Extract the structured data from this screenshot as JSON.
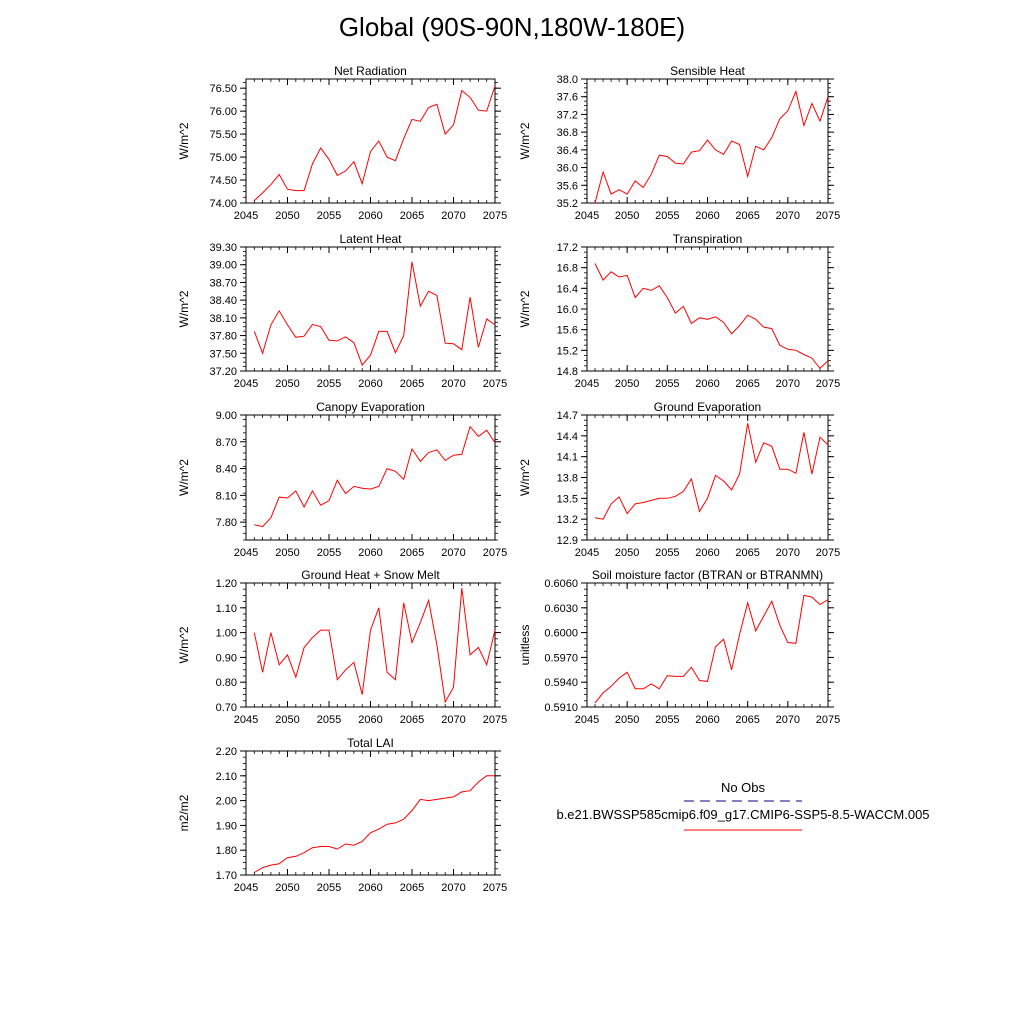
{
  "title": "Global (90S-90N,180W-180E)",
  "legend": {
    "obs_label": "No Obs",
    "model_label": "b.e21.BWSSP585cmip6.f09_g17.CMIP6-SSP5-8.5-WACCM.005",
    "obs_color": "#00008b",
    "model_color": "#ff0000"
  },
  "chart_data": [
    {
      "type": "line",
      "title": "Net Radiation",
      "ylabel": "W/m^2",
      "xlim": [
        2045,
        2075
      ],
      "ylim": [
        74.0,
        76.7
      ],
      "xticks": [
        2045,
        2050,
        2055,
        2060,
        2065,
        2070,
        2075
      ],
      "yticks": [
        "74.00",
        "74.50",
        "75.00",
        "75.50",
        "76.00",
        "76.50"
      ],
      "series": [
        {
          "color": "#ff0000",
          "x": [
            2046,
            2047,
            2048,
            2049,
            2050,
            2051,
            2052,
            2053,
            2054,
            2055,
            2056,
            2057,
            2058,
            2059,
            2060,
            2061,
            2062,
            2063,
            2064,
            2065,
            2066,
            2067,
            2068,
            2069,
            2070,
            2071,
            2072,
            2073,
            2074,
            2075
          ],
          "values": [
            74.05,
            74.22,
            74.4,
            74.62,
            74.3,
            74.27,
            74.27,
            74.85,
            75.2,
            74.95,
            74.6,
            74.7,
            74.9,
            74.42,
            75.12,
            75.35,
            75.0,
            74.92,
            75.4,
            75.82,
            75.78,
            76.08,
            76.15,
            75.5,
            75.7,
            76.45,
            76.3,
            76.02,
            76.0,
            76.55
          ]
        }
      ]
    },
    {
      "type": "line",
      "title": "Sensible Heat",
      "ylabel": "W/m^2",
      "xlim": [
        2045,
        2075
      ],
      "ylim": [
        35.2,
        38.0
      ],
      "xticks": [
        2045,
        2050,
        2055,
        2060,
        2065,
        2070,
        2075
      ],
      "yticks": [
        "35.2",
        "35.6",
        "36.0",
        "36.4",
        "36.8",
        "37.2",
        "37.6",
        "38.0"
      ],
      "series": [
        {
          "color": "#ff0000",
          "x": [
            2046,
            2047,
            2048,
            2049,
            2050,
            2051,
            2052,
            2053,
            2054,
            2055,
            2056,
            2057,
            2058,
            2059,
            2060,
            2061,
            2062,
            2063,
            2064,
            2065,
            2066,
            2067,
            2068,
            2069,
            2070,
            2071,
            2072,
            2073,
            2074,
            2075
          ],
          "values": [
            35.2,
            35.9,
            35.4,
            35.5,
            35.4,
            35.7,
            35.55,
            35.85,
            36.28,
            36.25,
            36.1,
            36.08,
            36.35,
            36.38,
            36.62,
            36.4,
            36.3,
            36.6,
            36.52,
            35.8,
            36.48,
            36.4,
            36.68,
            37.1,
            37.28,
            37.72,
            36.95,
            37.45,
            37.05,
            37.6
          ]
        }
      ]
    },
    {
      "type": "line",
      "title": "Latent Heat",
      "ylabel": "W/m^2",
      "xlim": [
        2045,
        2075
      ],
      "ylim": [
        37.2,
        39.3
      ],
      "xticks": [
        2045,
        2050,
        2055,
        2060,
        2065,
        2070,
        2075
      ],
      "yticks": [
        "37.20",
        "37.50",
        "37.80",
        "38.10",
        "38.40",
        "38.70",
        "39.00",
        "39.30"
      ],
      "series": [
        {
          "color": "#ff0000",
          "x": [
            2046,
            2047,
            2048,
            2049,
            2050,
            2051,
            2052,
            2053,
            2054,
            2055,
            2056,
            2057,
            2058,
            2059,
            2060,
            2061,
            2062,
            2063,
            2064,
            2065,
            2066,
            2067,
            2068,
            2069,
            2070,
            2071,
            2072,
            2073,
            2074,
            2075
          ],
          "values": [
            37.87,
            37.5,
            37.98,
            38.22,
            37.98,
            37.77,
            37.79,
            37.99,
            37.95,
            37.72,
            37.71,
            37.78,
            37.68,
            37.3,
            37.47,
            37.87,
            37.87,
            37.51,
            37.8,
            39.05,
            38.3,
            38.55,
            38.48,
            37.67,
            37.66,
            37.56,
            38.45,
            37.6,
            38.08,
            37.98
          ]
        }
      ]
    },
    {
      "type": "line",
      "title": "Transpiration",
      "ylabel": "W/m^2",
      "xlim": [
        2045,
        2075
      ],
      "ylim": [
        14.8,
        17.2
      ],
      "xticks": [
        2045,
        2050,
        2055,
        2060,
        2065,
        2070,
        2075
      ],
      "yticks": [
        "14.8",
        "15.2",
        "15.6",
        "16.0",
        "16.4",
        "16.8",
        "17.2"
      ],
      "series": [
        {
          "color": "#ff0000",
          "x": [
            2046,
            2047,
            2048,
            2049,
            2050,
            2051,
            2052,
            2053,
            2054,
            2055,
            2056,
            2057,
            2058,
            2059,
            2060,
            2061,
            2062,
            2063,
            2064,
            2065,
            2066,
            2067,
            2068,
            2069,
            2070,
            2071,
            2072,
            2073,
            2074,
            2075
          ],
          "values": [
            16.88,
            16.56,
            16.72,
            16.62,
            16.65,
            16.22,
            16.4,
            16.36,
            16.45,
            16.22,
            15.92,
            16.05,
            15.72,
            15.83,
            15.8,
            15.85,
            15.74,
            15.52,
            15.68,
            15.88,
            15.8,
            15.65,
            15.62,
            15.3,
            15.22,
            15.2,
            15.12,
            15.05,
            14.85,
            15.0
          ]
        }
      ]
    },
    {
      "type": "line",
      "title": "Canopy Evaporation",
      "ylabel": "W/m^2",
      "xlim": [
        2045,
        2075
      ],
      "ylim": [
        7.6,
        9.0
      ],
      "xticks": [
        2045,
        2050,
        2055,
        2060,
        2065,
        2070,
        2075
      ],
      "yticks": [
        "7.80",
        "8.10",
        "8.40",
        "8.70",
        "9.00"
      ],
      "series": [
        {
          "color": "#ff0000",
          "x": [
            2046,
            2047,
            2048,
            2049,
            2050,
            2051,
            2052,
            2053,
            2054,
            2055,
            2056,
            2057,
            2058,
            2059,
            2060,
            2061,
            2062,
            2063,
            2064,
            2065,
            2066,
            2067,
            2068,
            2069,
            2070,
            2071,
            2072,
            2073,
            2074,
            2075
          ],
          "values": [
            7.77,
            7.75,
            7.85,
            8.08,
            8.07,
            8.15,
            7.97,
            8.15,
            7.99,
            8.04,
            8.27,
            8.12,
            8.2,
            8.18,
            8.17,
            8.2,
            8.4,
            8.37,
            8.28,
            8.62,
            8.48,
            8.58,
            8.61,
            8.49,
            8.55,
            8.56,
            8.87,
            8.76,
            8.83,
            8.69
          ]
        }
      ]
    },
    {
      "type": "line",
      "title": "Ground Evaporation",
      "ylabel": "W/m^2",
      "xlim": [
        2045,
        2075
      ],
      "ylim": [
        12.9,
        14.7
      ],
      "xticks": [
        2045,
        2050,
        2055,
        2060,
        2065,
        2070,
        2075
      ],
      "yticks": [
        "12.9",
        "13.2",
        "13.5",
        "13.8",
        "14.1",
        "14.4",
        "14.7"
      ],
      "series": [
        {
          "color": "#ff0000",
          "x": [
            2046,
            2047,
            2048,
            2049,
            2050,
            2051,
            2052,
            2053,
            2054,
            2055,
            2056,
            2057,
            2058,
            2059,
            2060,
            2061,
            2062,
            2063,
            2064,
            2065,
            2066,
            2067,
            2068,
            2069,
            2070,
            2071,
            2072,
            2073,
            2074,
            2075
          ],
          "values": [
            13.22,
            13.2,
            13.42,
            13.52,
            13.28,
            13.42,
            13.44,
            13.47,
            13.5,
            13.5,
            13.53,
            13.6,
            13.78,
            13.31,
            13.5,
            13.83,
            13.75,
            13.62,
            13.85,
            14.58,
            14.02,
            14.3,
            14.25,
            13.92,
            13.92,
            13.86,
            14.45,
            13.85,
            14.38,
            14.27
          ]
        }
      ]
    },
    {
      "type": "line",
      "title": "Ground Heat + Snow Melt",
      "ylabel": "W/m^2",
      "xlim": [
        2045,
        2075
      ],
      "ylim": [
        0.7,
        1.2
      ],
      "xticks": [
        2045,
        2050,
        2055,
        2060,
        2065,
        2070,
        2075
      ],
      "yticks": [
        "0.70",
        "0.80",
        "0.90",
        "1.00",
        "1.10",
        "1.20"
      ],
      "series": [
        {
          "color": "#ff0000",
          "x": [
            2046,
            2047,
            2048,
            2049,
            2050,
            2051,
            2052,
            2053,
            2054,
            2055,
            2056,
            2057,
            2058,
            2059,
            2060,
            2061,
            2062,
            2063,
            2064,
            2065,
            2066,
            2067,
            2068,
            2069,
            2070,
            2071,
            2072,
            2073,
            2074,
            2075
          ],
          "values": [
            1.0,
            0.84,
            1.0,
            0.87,
            0.91,
            0.82,
            0.94,
            0.98,
            1.01,
            1.01,
            0.81,
            0.85,
            0.88,
            0.75,
            1.01,
            1.1,
            0.84,
            0.81,
            1.12,
            0.96,
            1.04,
            1.13,
            0.95,
            0.72,
            0.78,
            1.18,
            0.91,
            0.94,
            0.87,
            1.01
          ]
        }
      ]
    },
    {
      "type": "line",
      "title": "Soil moisture factor (BTRAN or BTRANMN)",
      "ylabel": "unitless",
      "xlim": [
        2045,
        2075
      ],
      "ylim": [
        0.591,
        0.606
      ],
      "xticks": [
        2045,
        2050,
        2055,
        2060,
        2065,
        2070,
        2075
      ],
      "yticks": [
        "0.5910",
        "0.5940",
        "0.5970",
        "0.6000",
        "0.6030",
        "0.6060"
      ],
      "series": [
        {
          "color": "#ff0000",
          "x": [
            2046,
            2047,
            2048,
            2049,
            2050,
            2051,
            2052,
            2053,
            2054,
            2055,
            2056,
            2057,
            2058,
            2059,
            2060,
            2061,
            2062,
            2063,
            2064,
            2065,
            2066,
            2067,
            2068,
            2069,
            2070,
            2071,
            2072,
            2073,
            2074,
            2075
          ],
          "values": [
            0.5915,
            0.5927,
            0.5935,
            0.5945,
            0.5952,
            0.5932,
            0.5932,
            0.5938,
            0.5932,
            0.5948,
            0.5947,
            0.5947,
            0.5958,
            0.5942,
            0.5941,
            0.5983,
            0.5992,
            0.5955,
            0.5998,
            0.6036,
            0.6002,
            0.602,
            0.6038,
            0.6009,
            0.5988,
            0.5987,
            0.6045,
            0.6043,
            0.6034,
            0.604
          ]
        }
      ]
    },
    {
      "type": "line",
      "title": "Total LAI",
      "ylabel": "m2/m2",
      "xlim": [
        2045,
        2075
      ],
      "ylim": [
        1.7,
        2.2
      ],
      "xticks": [
        2045,
        2050,
        2055,
        2060,
        2065,
        2070,
        2075
      ],
      "yticks": [
        "1.70",
        "1.80",
        "1.90",
        "2.00",
        "2.10",
        "2.20"
      ],
      "series": [
        {
          "color": "#ff0000",
          "x": [
            2046,
            2047,
            2048,
            2049,
            2050,
            2051,
            2052,
            2053,
            2054,
            2055,
            2056,
            2057,
            2058,
            2059,
            2060,
            2061,
            2062,
            2063,
            2064,
            2065,
            2066,
            2067,
            2068,
            2069,
            2070,
            2071,
            2072,
            2073,
            2074,
            2075
          ],
          "values": [
            1.71,
            1.73,
            1.74,
            1.745,
            1.77,
            1.775,
            1.79,
            1.81,
            1.815,
            1.815,
            1.805,
            1.825,
            1.82,
            1.835,
            1.87,
            1.885,
            1.905,
            1.91,
            1.925,
            1.96,
            2.005,
            2.0,
            2.005,
            2.01,
            2.015,
            2.035,
            2.04,
            2.075,
            2.1,
            2.1
          ]
        }
      ]
    }
  ]
}
